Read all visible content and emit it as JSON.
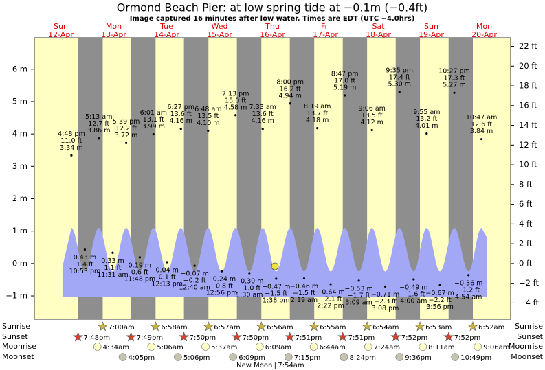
{
  "chart_data": {
    "type": "tide",
    "title": "Ormond Beach Pier: at low  spring tide at −0.1m (−0.4ft)",
    "subtitle": "Image captured 16 minutes after low water. Times are EDT (UTC −4.0hrs)",
    "ylim": [
      -1.72,
      6.97
    ],
    "yticks": [
      {
        "value": -1,
        "label": "−1 m"
      },
      {
        "value": 0,
        "label": "0 m"
      },
      {
        "value": 1,
        "label": "1 m"
      },
      {
        "value": 2,
        "label": "2 m"
      },
      {
        "value": 3,
        "label": "3 m"
      },
      {
        "value": 4,
        "label": "4 m"
      },
      {
        "value": 5,
        "label": "5 m"
      },
      {
        "value": 6,
        "label": "6 m"
      }
    ],
    "y2lim": [
      -5.64,
      22.87
    ],
    "y2ticks": [
      {
        "value": -4,
        "label": "−4 ft"
      },
      {
        "value": -2,
        "label": "−2 ft"
      },
      {
        "value": 0,
        "label": "0 ft"
      },
      {
        "value": 2,
        "label": "2 ft"
      },
      {
        "value": 4,
        "label": "4 ft"
      },
      {
        "value": 6,
        "label": "6 ft"
      },
      {
        "value": 8,
        "label": "8 ft"
      },
      {
        "value": 10,
        "label": "10 ft"
      },
      {
        "value": 12,
        "label": "12 ft"
      },
      {
        "value": 14,
        "label": "14 ft"
      },
      {
        "value": 16,
        "label": "16 ft"
      },
      {
        "value": 18,
        "label": "18 ft"
      },
      {
        "value": 20,
        "label": "20 ft"
      },
      {
        "value": 22,
        "label": "22 ft"
      }
    ],
    "row_labels": [
      "Sunrise",
      "Sunset",
      "Moonrise",
      "Moonset"
    ],
    "days": [
      {
        "name": "Sun",
        "date": "12-Apr",
        "sunrise": null,
        "sunset": "7:48pm",
        "moonrise": null,
        "moonset": null,
        "tides": [
          {
            "time": "4:48 pm",
            "value": 3.34,
            "value_label": "3.34 m",
            "ft_label": "11.0 ft"
          },
          {
            "time": "10:53 pm",
            "value": 0.43,
            "value_label": "0.43 m",
            "ft_label": "1.4 ft"
          }
        ]
      },
      {
        "name": "Mon",
        "date": "13-Apr",
        "sunrise": "7:00am",
        "sunset": "7:49pm",
        "moonrise": "4:34am",
        "moonset": "4:05pm",
        "tides": [
          {
            "time": "5:13 am",
            "value": 3.86,
            "value_label": "3.86 m",
            "ft_label": "12.7 ft"
          },
          {
            "time": "11:31 am",
            "value": 0.33,
            "value_label": "0.33 m",
            "ft_label": "1.1 ft"
          },
          {
            "time": "5:39 pm",
            "value": 3.72,
            "value_label": "3.72 m",
            "ft_label": "12.2 ft"
          },
          {
            "time": "11:48 pm",
            "value": 0.19,
            "value_label": "0.19 m",
            "ft_label": "0.6 ft"
          }
        ]
      },
      {
        "name": "Tue",
        "date": "14-Apr",
        "sunrise": "6:58am",
        "sunset": "7:50pm",
        "moonrise": "5:06am",
        "moonset": "5:06pm",
        "tides": [
          {
            "time": "6:01 am",
            "value": 3.99,
            "value_label": "3.99 m",
            "ft_label": "13.1 ft"
          },
          {
            "time": "12:13 pm",
            "value": 0.04,
            "value_label": "0.04 m",
            "ft_label": "0.1 ft"
          },
          {
            "time": "6:27 pm",
            "value": 4.16,
            "value_label": "4.16 m",
            "ft_label": "13.6 ft"
          }
        ]
      },
      {
        "name": "Wed",
        "date": "15-Apr",
        "sunrise": "6:57am",
        "sunset": "7:50pm",
        "moonrise": "5:37am",
        "moonset": "6:09pm",
        "tides": [
          {
            "time": "12:40 am",
            "value": -0.07,
            "value_label": "−0.07 m",
            "ft_label": "−0.2 ft"
          },
          {
            "time": "6:48 am",
            "value": 4.1,
            "value_label": "4.10 m",
            "ft_label": "13.5 ft"
          },
          {
            "time": "12:56 pm",
            "value": -0.24,
            "value_label": "−0.24 m",
            "ft_label": "−0.8 ft"
          },
          {
            "time": "7:13 pm",
            "value": 4.58,
            "value_label": "4.58 m",
            "ft_label": "15.0 ft"
          }
        ]
      },
      {
        "name": "Thu",
        "date": "16-Apr",
        "sunrise": "6:56am",
        "sunset": "7:51pm",
        "moonrise": "6:09am",
        "moonset": "7:15pm",
        "moon_phase": "New Moon",
        "moon_phase_time": "7:54am",
        "tides": [
          {
            "time": "1:30 am",
            "value": -0.3,
            "value_label": "−0.30 m",
            "ft_label": "−1.0 ft"
          },
          {
            "time": "7:33 am",
            "value": 4.16,
            "value_label": "4.16 m",
            "ft_label": "13.6 ft"
          },
          {
            "time": "1:38 pm",
            "value": -0.47,
            "value_label": "−0.47 m",
            "ft_label": "−1.5 ft"
          },
          {
            "time": "8:00 pm",
            "value": 4.94,
            "value_label": "4.94 m",
            "ft_label": "16.2 ft"
          }
        ]
      },
      {
        "name": "Fri",
        "date": "17-Apr",
        "sunrise": "6:55am",
        "sunset": "7:51pm",
        "moonrise": "6:44am",
        "moonset": "8:24pm",
        "tides": [
          {
            "time": "2:19 am",
            "value": -0.46,
            "value_label": "−0.46 m",
            "ft_label": "−1.5 ft"
          },
          {
            "time": "8:19 am",
            "value": 4.18,
            "value_label": "4.18 m",
            "ft_label": "13.7 ft"
          },
          {
            "time": "2:22 pm",
            "value": -0.64,
            "value_label": "−0.64 m",
            "ft_label": "−2.1 ft"
          },
          {
            "time": "8:47 pm",
            "value": 5.19,
            "value_label": "5.19 m",
            "ft_label": "17.0 ft"
          }
        ]
      },
      {
        "name": "Sat",
        "date": "18-Apr",
        "sunrise": "6:54am",
        "sunset": "7:52pm",
        "moonrise": "7:24am",
        "moonset": "9:36pm",
        "tides": [
          {
            "time": "3:09 am",
            "value": -0.53,
            "value_label": "−0.53 m",
            "ft_label": "−1.7 ft"
          },
          {
            "time": "9:06 am",
            "value": 4.12,
            "value_label": "4.12 m",
            "ft_label": "13.5 ft"
          },
          {
            "time": "3:08 pm",
            "value": -0.71,
            "value_label": "−0.71 m",
            "ft_label": "−2.3 ft"
          },
          {
            "time": "9:35 pm",
            "value": 5.3,
            "value_label": "5.30 m",
            "ft_label": "17.4 ft"
          }
        ]
      },
      {
        "name": "Sun",
        "date": "19-Apr",
        "sunrise": "6:53am",
        "sunset": "7:52pm",
        "moonrise": "8:11am",
        "moonset": "10:49pm",
        "tides": [
          {
            "time": "4:00 am",
            "value": -0.49,
            "value_label": "−0.49 m",
            "ft_label": "−1.6 ft"
          },
          {
            "time": "9:55 am",
            "value": 4.01,
            "value_label": "4.01 m",
            "ft_label": "13.2 ft"
          },
          {
            "time": "3:56 pm",
            "value": -0.67,
            "value_label": "−0.67 m",
            "ft_label": "−2.2 ft"
          },
          {
            "time": "10:27 pm",
            "value": 5.27,
            "value_label": "5.27 m",
            "ft_label": "17.3 ft"
          }
        ]
      },
      {
        "name": "Mon",
        "date": "20-Apr",
        "sunrise": "6:52am",
        "sunset": null,
        "moonrise": "9:06am",
        "moonset": null,
        "tides": [
          {
            "time": "4:54 am",
            "value": -0.36,
            "value_label": "−0.36 m",
            "ft_label": "−1.2 ft"
          },
          {
            "time": "10:47 am",
            "value": 3.84,
            "value_label": "3.84 m",
            "ft_label": "12.6 ft"
          }
        ]
      }
    ]
  }
}
